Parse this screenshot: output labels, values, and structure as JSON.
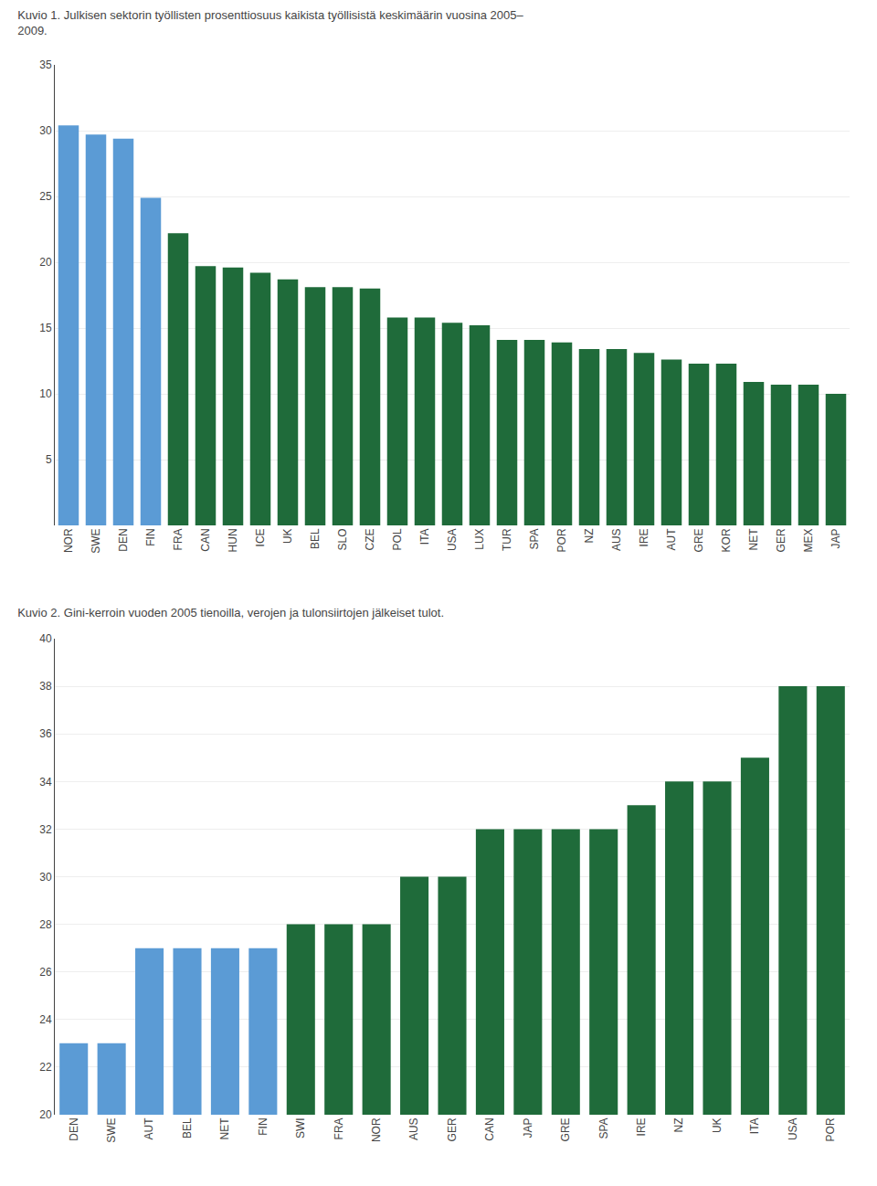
{
  "chart_data": [
    {
      "type": "bar",
      "title": "Kuvio 1. Julkisen sektorin työllisten prosenttiosuus kaikista työllisistä keskimäärin vuosina 2005–\n2009.",
      "categories": [
        "NOR",
        "SWE",
        "DEN",
        "FIN",
        "FRA",
        "CAN",
        "HUN",
        "ICE",
        "UK",
        "BEL",
        "SLO",
        "CZE",
        "POL",
        "ITA",
        "USA",
        "LUX",
        "TUR",
        "SPA",
        "POR",
        "NZ",
        "AUS",
        "IRE",
        "AUT",
        "GRE",
        "KOR",
        "NET",
        "GER",
        "MEX",
        "JAP"
      ],
      "values": [
        30.4,
        29.7,
        29.4,
        24.9,
        22.2,
        19.7,
        19.6,
        19.2,
        18.7,
        18.1,
        18.1,
        18.0,
        15.8,
        15.8,
        15.4,
        15.2,
        14.1,
        14.1,
        13.9,
        13.4,
        13.4,
        13.1,
        12.6,
        12.3,
        12.3,
        10.9,
        10.7,
        10.7,
        10.0
      ],
      "colors": [
        "#5B9BD5",
        "#5B9BD5",
        "#5B9BD5",
        "#5B9BD5",
        "#1F6B3A",
        "#1F6B3A",
        "#1F6B3A",
        "#1F6B3A",
        "#1F6B3A",
        "#1F6B3A",
        "#1F6B3A",
        "#1F6B3A",
        "#1F6B3A",
        "#1F6B3A",
        "#1F6B3A",
        "#1F6B3A",
        "#1F6B3A",
        "#1F6B3A",
        "#1F6B3A",
        "#1F6B3A",
        "#1F6B3A",
        "#1F6B3A",
        "#1F6B3A",
        "#1F6B3A",
        "#1F6B3A",
        "#1F6B3A",
        "#1F6B3A",
        "#1F6B3A",
        "#1F6B3A"
      ],
      "ylim": [
        0,
        35
      ],
      "yticks": [
        5,
        10,
        15,
        20,
        25,
        30,
        35
      ],
      "grid": true
    },
    {
      "type": "bar",
      "title": "Kuvio 2. Gini-kerroin vuoden 2005 tienoilla, verojen ja tulonsiirtojen jälkeiset tulot.",
      "categories": [
        "DEN",
        "SWE",
        "AUT",
        "BEL",
        "NET",
        "FIN",
        "SWI",
        "FRA",
        "NOR",
        "AUS",
        "GER",
        "CAN",
        "JAP",
        "GRE",
        "SPA",
        "IRE",
        "NZ",
        "UK",
        "ITA",
        "USA",
        "POR"
      ],
      "values": [
        23.0,
        23.0,
        27.0,
        27.0,
        27.0,
        27.0,
        28.0,
        28.0,
        28.0,
        30.0,
        30.0,
        32.0,
        32.0,
        32.0,
        32.0,
        33.0,
        34.0,
        34.0,
        35.0,
        38.0,
        38.0
      ],
      "colors": [
        "#5B9BD5",
        "#5B9BD5",
        "#5B9BD5",
        "#5B9BD5",
        "#5B9BD5",
        "#5B9BD5",
        "#1F6B3A",
        "#1F6B3A",
        "#1F6B3A",
        "#1F6B3A",
        "#1F6B3A",
        "#1F6B3A",
        "#1F6B3A",
        "#1F6B3A",
        "#1F6B3A",
        "#1F6B3A",
        "#1F6B3A",
        "#1F6B3A",
        "#1F6B3A",
        "#1F6B3A",
        "#1F6B3A"
      ],
      "ylim": [
        20,
        40
      ],
      "yticks": [
        20,
        22,
        24,
        26,
        28,
        30,
        32,
        34,
        36,
        38,
        40
      ],
      "grid": true
    }
  ]
}
